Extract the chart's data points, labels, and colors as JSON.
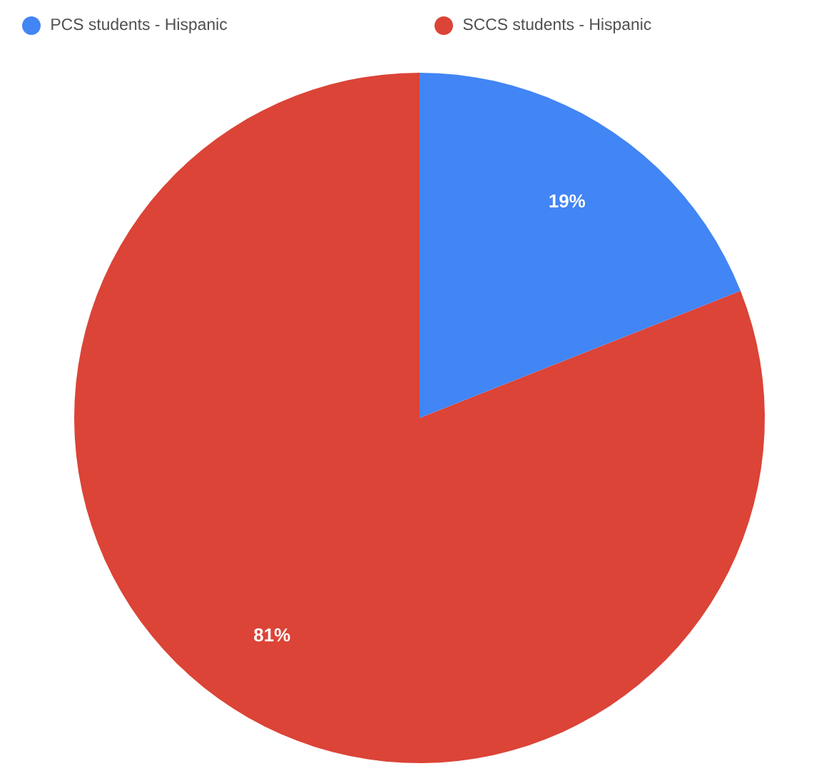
{
  "chart_data": {
    "type": "pie",
    "categories": [
      "PCS students - Hispanic",
      "SCCS students - Hispanic"
    ],
    "values": [
      19,
      81
    ],
    "colors": [
      "#4285f4",
      "#db4437"
    ],
    "value_labels": [
      "19%",
      "81%"
    ],
    "legend": "top"
  }
}
